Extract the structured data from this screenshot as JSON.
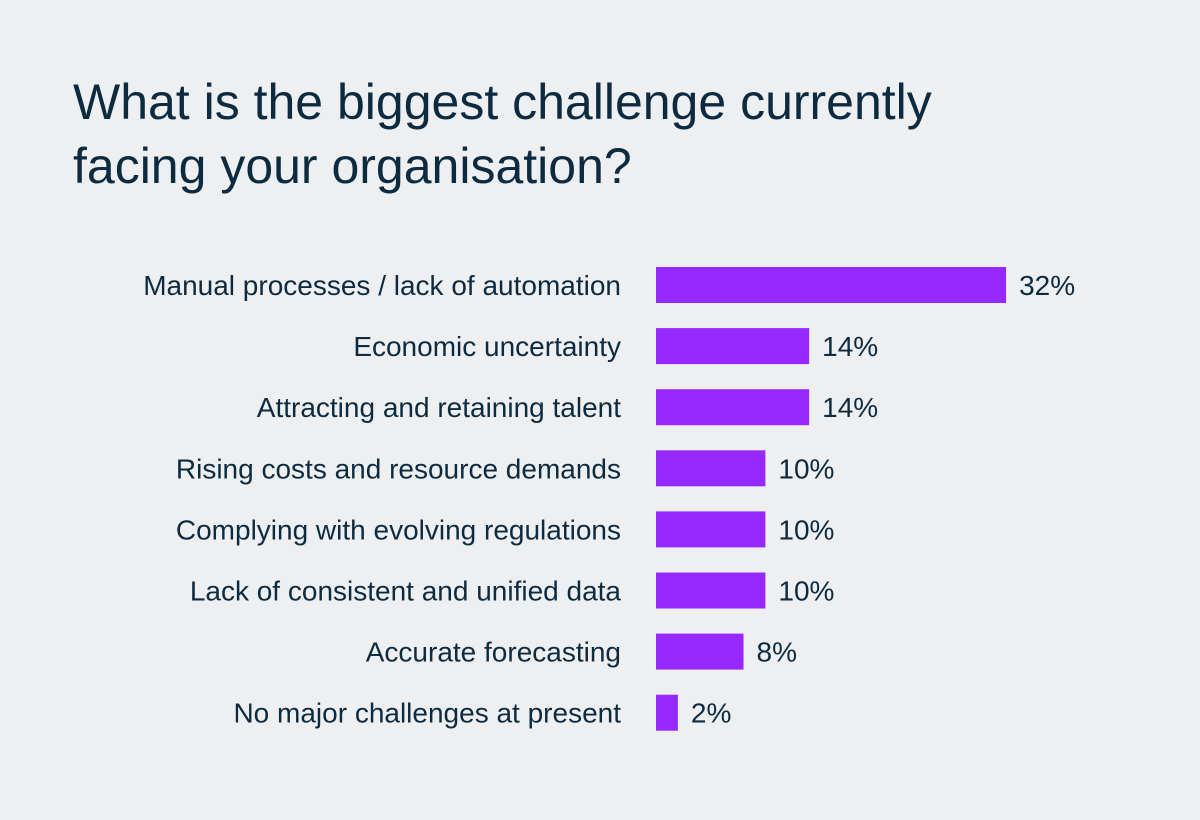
{
  "chart_data": {
    "type": "bar",
    "orientation": "horizontal",
    "title": "What is the biggest challenge currently facing your organisation?",
    "categories": [
      "Manual processes / lack of automation",
      "Economic uncertainty",
      "Attracting and retaining talent",
      "Rising costs and resource demands",
      "Complying with evolving regulations",
      "Lack of consistent and unified data",
      "Accurate forecasting",
      "No major challenges at present"
    ],
    "values": [
      32,
      14,
      14,
      10,
      10,
      10,
      8,
      2
    ],
    "value_labels": [
      "32%",
      "14%",
      "14%",
      "10%",
      "10%",
      "10%",
      "8%",
      "2%"
    ],
    "unit": "%",
    "xlabel": "",
    "ylabel": "",
    "grid": false,
    "colors": {
      "bar": "#9629ff",
      "text": "#0d2b40",
      "background": "#eeeff1"
    }
  }
}
